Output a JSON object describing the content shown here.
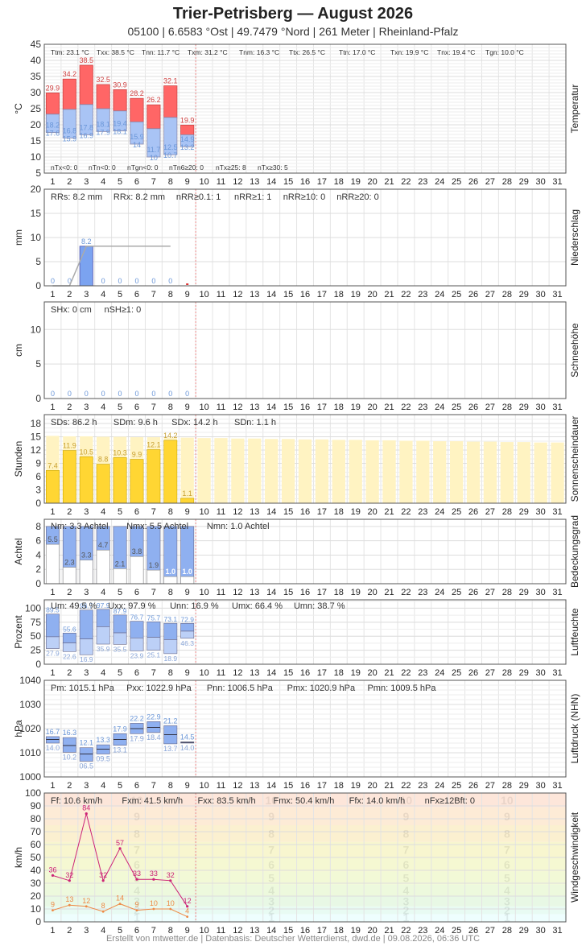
{
  "header": {
    "title": "Trier-Petrisberg  —  August 2026",
    "subtitle": "05100  |  6.6583 °Ost  |  49.7479 °Nord  |  261 Meter  |  Rheinland-Pfalz"
  },
  "footer": "Erstellt von mtwetter.de | Datenbasis: Deutscher Wetterdienst, dwd.de | 09.08.2026, 06:36 UTC",
  "chart_data": [
    {
      "id": "temperatur",
      "type": "bar",
      "title": "Temperatur",
      "ylabel": "°C",
      "ylim": [
        5,
        45
      ],
      "yticks": [
        5,
        10,
        15,
        20,
        25,
        30,
        35,
        40,
        45
      ],
      "x": [
        1,
        2,
        3,
        4,
        5,
        6,
        7,
        8,
        9,
        10,
        11,
        12,
        13,
        14,
        15,
        16,
        17,
        18,
        19,
        20,
        21,
        22,
        23,
        24,
        25,
        26,
        27,
        28,
        29,
        30,
        31
      ],
      "tmax": [
        29.9,
        34.2,
        38.5,
        32.5,
        30.9,
        28.2,
        26.2,
        32.1,
        19.9
      ],
      "tmean": [
        23.3,
        24.8,
        26.3,
        25.0,
        24.3,
        20.9,
        18.8,
        22.3,
        16.9
      ],
      "tmin_label": [
        18.2,
        16.8,
        17.8,
        18.1,
        19.4,
        15.9,
        11.7,
        12.5,
        14.9
      ],
      "tmin": [
        17.6,
        15.9,
        16.9,
        17.9,
        18.1,
        14.0,
        10.0,
        10.7,
        13.2
      ],
      "stats_top": [
        "Ttm: 23.1 °C",
        "Txx: 38.5 °C",
        "Tnn: 11.7 °C",
        "Txm: 31.2 °C",
        "Tnm: 16.3 °C",
        "Ttx: 26.5 °C",
        "Ttn: 17.0 °C",
        "Txn: 19.9 °C",
        "Tnx: 19.4 °C",
        "Tgn: 10.0 °C"
      ],
      "stats_bottom": [
        "nTx<0: 0",
        "nTn<0: 0",
        "nTgn<0: 0",
        "nTn6≥20: 0",
        "nTx≥25: 8",
        "nTx≥30: 5"
      ],
      "colors": {
        "upper": "#ff6666",
        "lower": "#a9c4f5",
        "upper_text": "#d04040",
        "lower_text": "#6a96d8"
      }
    },
    {
      "id": "niederschlag",
      "type": "bar",
      "title": "Niederschlag",
      "ylabel": "mm",
      "ylim": [
        0,
        20
      ],
      "yticks": [
        0,
        5,
        10,
        15,
        20
      ],
      "values": [
        0,
        0,
        8.2,
        0,
        0,
        0,
        0,
        0
      ],
      "value_labels": [
        "0",
        "0",
        "8.2",
        "0",
        "0",
        "0",
        "0",
        "0"
      ],
      "cumulative": [
        0,
        0,
        8.2,
        8.2,
        8.2,
        8.2,
        8.2,
        8.2
      ],
      "stats": [
        "RRs: 8.2 mm",
        "RRx: 8.2 mm",
        "nRR≥0.1: 1",
        "nRR≥1: 1",
        "nRR≥10: 0",
        "nRR≥20: 0"
      ],
      "colors": {
        "bar": "#7ba3f0",
        "line": "#aaaaaa",
        "text": "#6a96d8"
      }
    },
    {
      "id": "schnee",
      "type": "bar",
      "title": "Schneehöhe",
      "ylabel": "cm",
      "ylim": [
        0,
        14
      ],
      "yticks": [
        0,
        5,
        10
      ],
      "values": [
        0,
        0,
        0,
        0,
        0,
        0,
        0,
        0,
        0
      ],
      "value_labels": [
        "0",
        "0",
        "0",
        "0",
        "0",
        "0",
        "0",
        "0",
        "0"
      ],
      "stats": [
        "SHx: 0 cm",
        "nSH≥1: 0"
      ]
    },
    {
      "id": "sonne",
      "type": "bar",
      "title": "Sonnenscheindauer",
      "ylabel": "Stunden",
      "ylim": [
        0,
        20
      ],
      "yticks": [
        0,
        3,
        6,
        9,
        12,
        15,
        18
      ],
      "values": [
        7.4,
        11.9,
        10.5,
        8.8,
        10.3,
        9.9,
        12.1,
        14.2,
        1.1
      ],
      "value_labels": [
        "7.4",
        "11.9",
        "10.5",
        "8.8",
        "10.3",
        "9.9",
        "12.1",
        "14.2",
        "1.1"
      ],
      "possible": [
        15.2,
        15.1,
        15.1,
        15.0,
        15.0,
        14.9,
        14.9,
        14.8,
        14.8,
        14.7,
        14.7,
        14.6,
        14.6,
        14.5,
        14.5,
        14.4,
        14.4,
        14.3,
        14.3,
        14.2,
        14.2,
        14.1,
        14.1,
        14.0,
        14.0,
        13.9,
        13.9,
        13.8,
        13.8,
        13.7,
        13.7
      ],
      "stats": [
        "SDs: 86.2 h",
        "SDm: 9.6 h",
        "SDx: 14.2 h",
        "SDn: 1.1 h"
      ],
      "colors": {
        "bar": "#ffd633",
        "possible": "#fff3c2",
        "text": "#c8a030"
      }
    },
    {
      "id": "bedeckung",
      "type": "bar",
      "title": "Bedeckungsgrad",
      "ylabel": "Achtel",
      "ylim": [
        0,
        9
      ],
      "yticks": [
        0,
        2,
        4,
        6,
        8
      ],
      "values": [
        5.5,
        2.3,
        3.3,
        4.7,
        2.1,
        3.8,
        1.9,
        1.0,
        1.0
      ],
      "value_labels": [
        "5.5",
        "2.3",
        "3.3",
        "4.7",
        "2.1",
        "3.8",
        "1.9",
        "1.0",
        "1.0"
      ],
      "stats": [
        "Nm: 3.3 Achtel",
        "Nmx: 5.5 Achtel",
        "Nmn: 1.0 Achtel"
      ],
      "colors": {
        "sky": "#8fb0f0",
        "cloud": "#ffffff"
      }
    },
    {
      "id": "feuchte",
      "type": "bar",
      "title": "Luftfeuchte",
      "ylabel": "Prozent",
      "ylim": [
        0,
        115
      ],
      "yticks": [
        0,
        25,
        50,
        75,
        100
      ],
      "umax": [
        89.5,
        55.6,
        96.7,
        97.9,
        87.9,
        76.7,
        75.7,
        73.1,
        72.9
      ],
      "umin": [
        27.9,
        22.6,
        16.9,
        35.9,
        35.5,
        23.9,
        25.1,
        18.9,
        46.3
      ],
      "umean": [
        49,
        38,
        45,
        67,
        56,
        47,
        48,
        44,
        59
      ],
      "stats": [
        "Um: 49.5 %",
        "Uxx: 97.9 %",
        "Unn: 16.9 %",
        "Umx: 66.4 %",
        "Umn: 38.7 %"
      ],
      "colors": {
        "upper": "#8fb0f0",
        "lower": "#bcd0f7",
        "text": "#6a96d8"
      }
    },
    {
      "id": "luftdruck",
      "type": "bar",
      "title": "Luftdruck (NHN)",
      "ylabel": "hPa",
      "ylim": [
        1000,
        1040
      ],
      "yticks": [
        1000,
        1010,
        1020,
        1030,
        1040
      ],
      "pmax": [
        1016.7,
        1016.3,
        1012.1,
        1013.3,
        1017.9,
        1022.2,
        1022.9,
        1021.2,
        1014.5
      ],
      "pmin": [
        1014.0,
        1010.2,
        1006.5,
        1009.5,
        1013.1,
        1017.9,
        1018.4,
        1013.7,
        1014.0
      ],
      "pmean": [
        1015.5,
        1013.0,
        1009.5,
        1011.5,
        1015.5,
        1020.0,
        1020.5,
        1017.5,
        1014.3
      ],
      "max_labels": [
        "16.7",
        "16.3",
        "12.1",
        "13.3",
        "17.9",
        "22.2",
        "22.9",
        "21.2",
        "14.5"
      ],
      "min_labels": [
        "14.0",
        "10.2",
        "06.5",
        "09.5",
        "13.1",
        "17.9",
        "18.4",
        "13.7",
        "14.0"
      ],
      "stats": [
        "Pm: 1015.1 hPa",
        "Pxx: 1022.9 hPa",
        "Pnn: 1006.5 hPa",
        "Pmx: 1020.9 hPa",
        "Pmn: 1009.5 hPa"
      ],
      "colors": {
        "bar": "#8fb0f0",
        "text": "#6a96d8"
      }
    },
    {
      "id": "wind",
      "type": "line",
      "title": "Windgeschwindigkeit",
      "ylabel": "km/h",
      "ylim": [
        0,
        100
      ],
      "yticks": [
        0,
        10,
        20,
        30,
        40,
        50,
        60,
        70,
        80,
        90,
        100
      ],
      "gusts": [
        36,
        32,
        84,
        32,
        57,
        33,
        33,
        32,
        12
      ],
      "mean": [
        9,
        13,
        12,
        8,
        14,
        9,
        10,
        10,
        4
      ],
      "bft_labels": [
        "1",
        "2",
        "3",
        "4",
        "5",
        "6",
        "7",
        "8",
        "9",
        "10"
      ],
      "bft_bounds": [
        1,
        6,
        12,
        20,
        29,
        39,
        50,
        62,
        75,
        89,
        100
      ],
      "bft_colors": [
        "#eefefe",
        "#e8fbf3",
        "#e8f8e5",
        "#edf9dd",
        "#f2f9d6",
        "#f5f8d2",
        "#f8f6cf",
        "#fbf0d0",
        "#fdebd6",
        "#fde6da"
      ],
      "stats": [
        "Ff: 10.6 km/h",
        "Fxm: 41.5 km/h",
        "Fxx: 83.5 km/h",
        "Fmx: 50.4 km/h",
        "Ffx: 14.0 km/h",
        "nFx≥12Bft: 0"
      ],
      "colors": {
        "gust": "#cc2277",
        "mean": "#ee8844"
      }
    }
  ]
}
